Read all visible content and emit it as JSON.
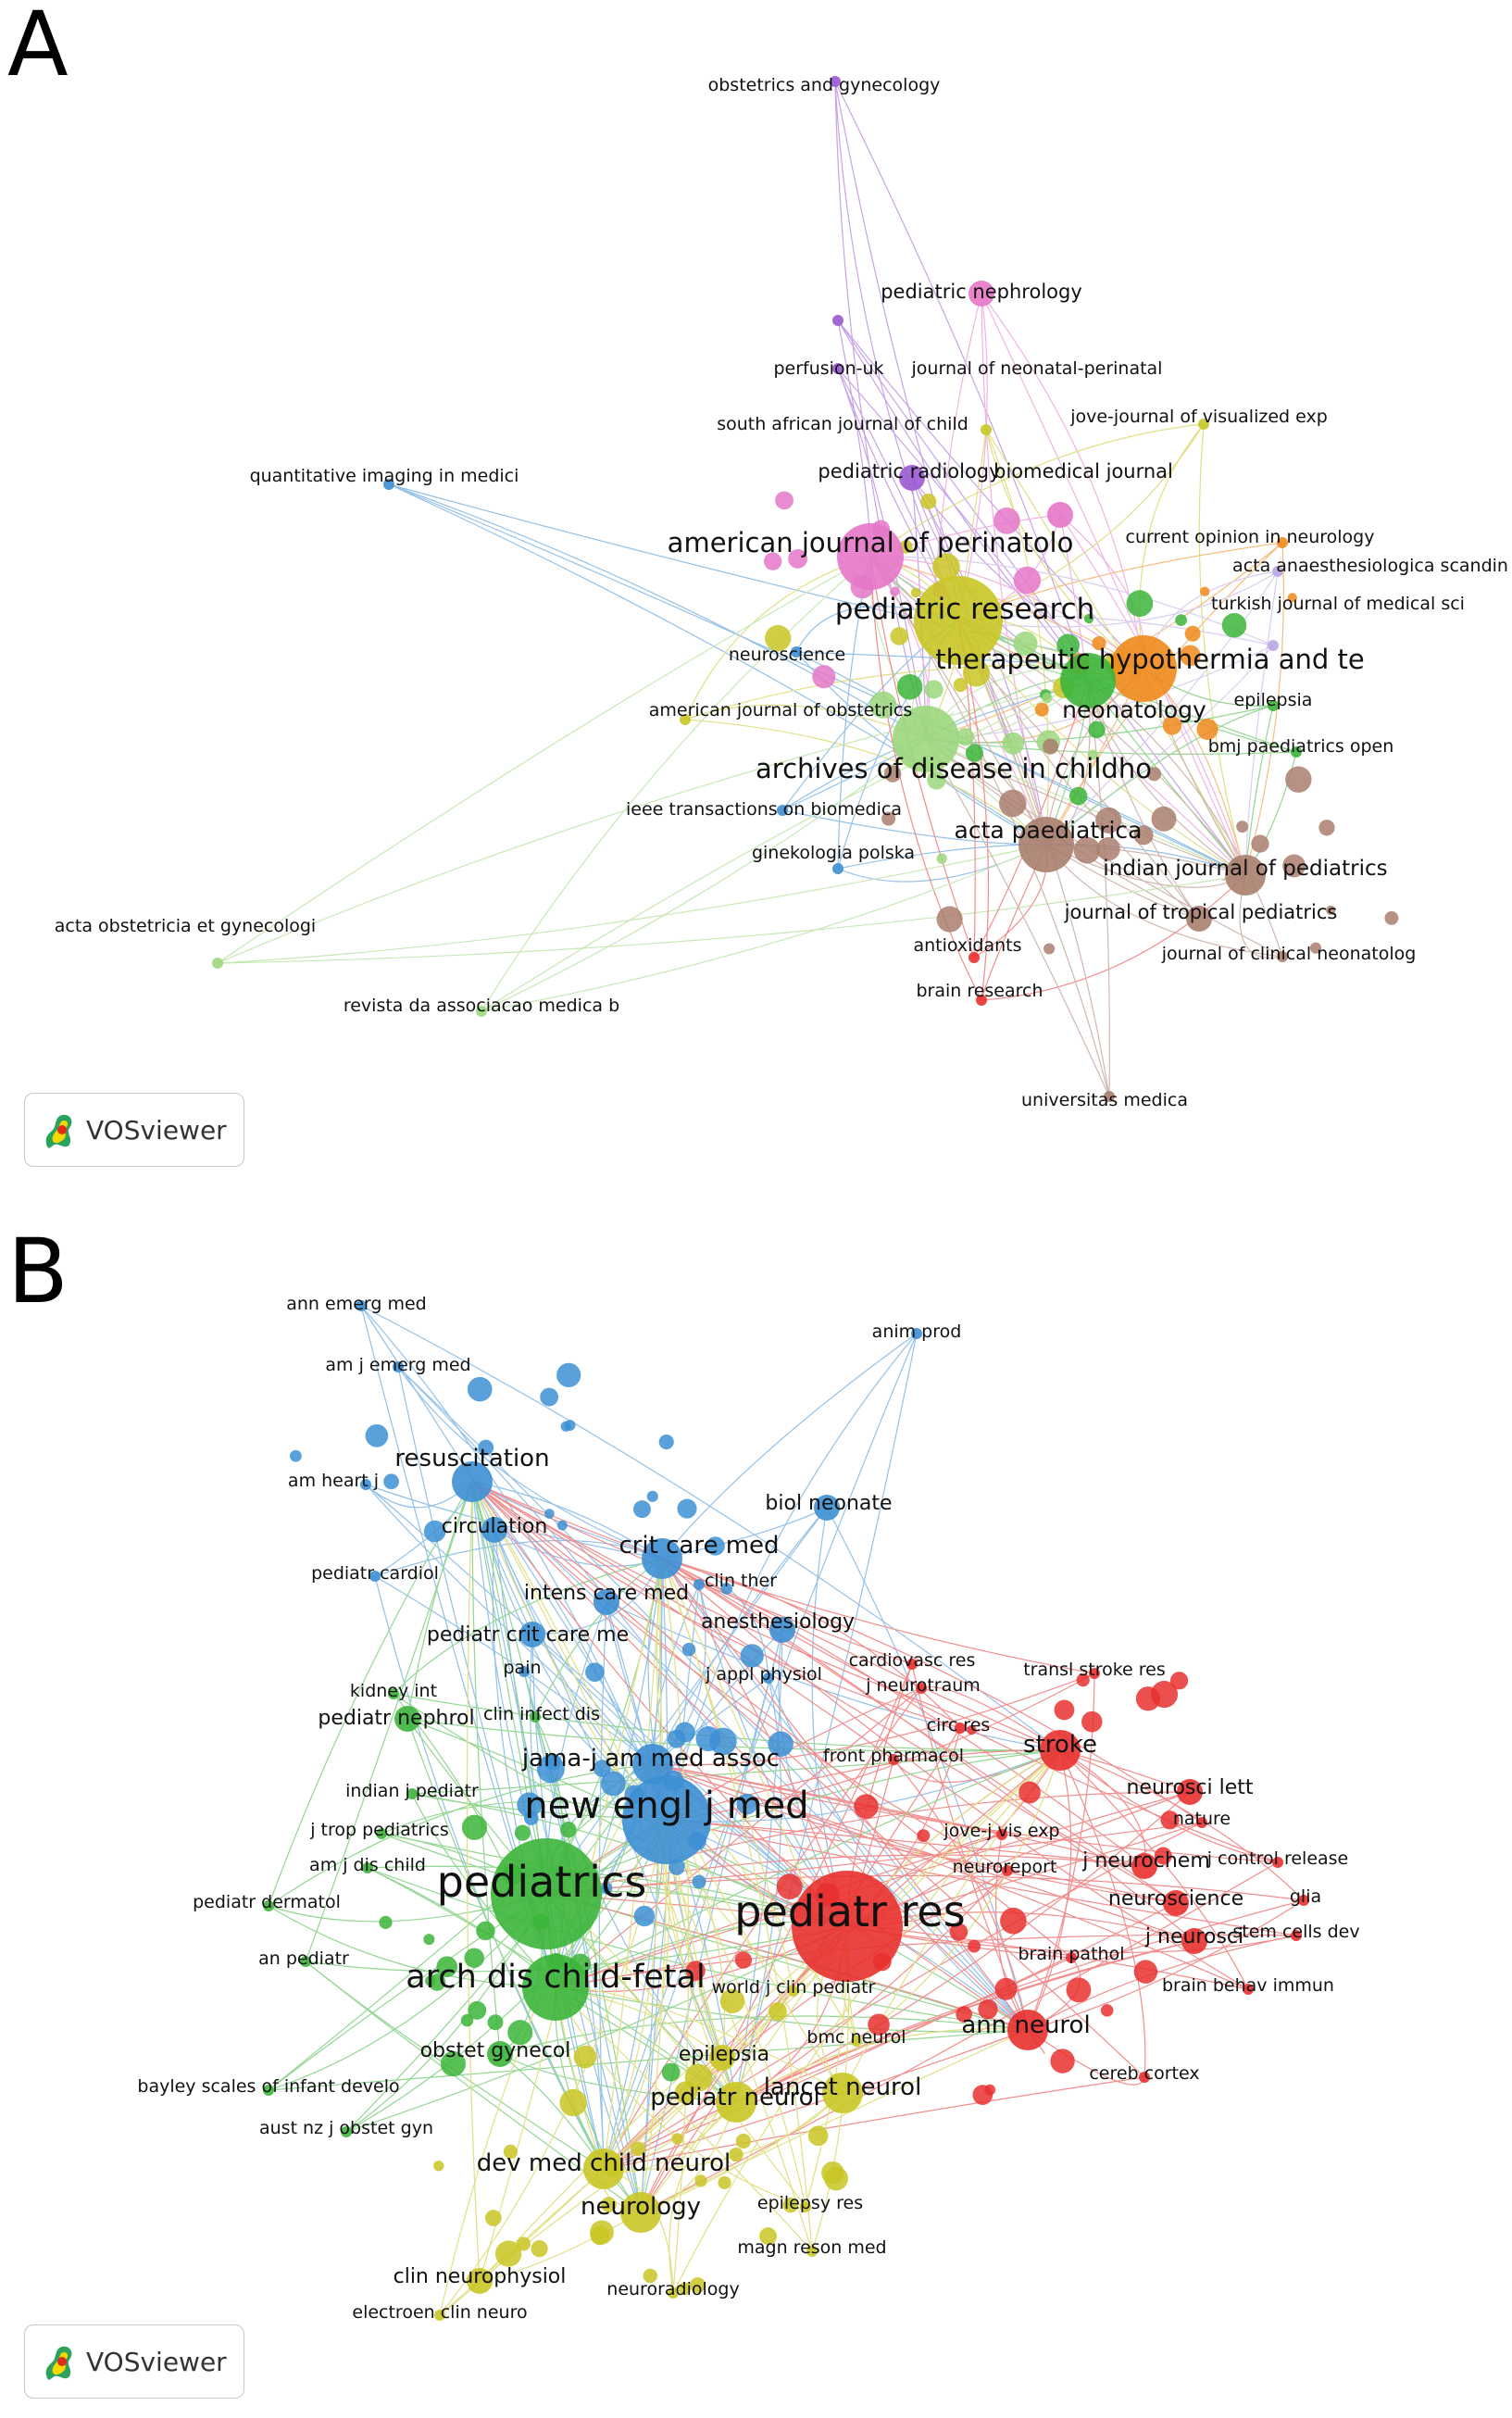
{
  "panels": [
    {
      "letter": "A",
      "logo_text": "VOSviewer",
      "nodes": [
        {
          "label": "obstetrics and gynecology",
          "cluster": "purple",
          "weight": 1
        },
        {
          "label": "pediatric nephrology",
          "cluster": "pink",
          "weight": 2
        },
        {
          "label": "perfusion-uk",
          "cluster": "purple",
          "weight": 1
        },
        {
          "label": "journal of neonatal-perinatal",
          "cluster": "purple",
          "weight": 1
        },
        {
          "label": "south african journal of child",
          "cluster": "olive",
          "weight": 1
        },
        {
          "label": "jove-journal of visualized exp",
          "cluster": "olive",
          "weight": 1
        },
        {
          "label": "quantitative imaging in medici",
          "cluster": "blue",
          "weight": 1
        },
        {
          "label": "pediatric radiology",
          "cluster": "purple",
          "weight": 2
        },
        {
          "label": "biomedical journal",
          "cluster": "pink",
          "weight": 2
        },
        {
          "label": "american journal of perinatolo",
          "cluster": "pink",
          "weight": 5
        },
        {
          "label": "current opinion in neurology",
          "cluster": "orange",
          "weight": 1
        },
        {
          "label": "acta anaesthesiologica scandin",
          "cluster": "lavender",
          "weight": 1
        },
        {
          "label": "pediatric research",
          "cluster": "olive",
          "weight": 6
        },
        {
          "label": "turkish journal of medical sci",
          "cluster": "lavender",
          "weight": 1
        },
        {
          "label": "neuroscience",
          "cluster": "blue",
          "weight": 1
        },
        {
          "label": "therapeutic hypothermia and te",
          "cluster": "orange",
          "weight": 5
        },
        {
          "label": "american journal of obstetrics",
          "cluster": "olive",
          "weight": 1
        },
        {
          "label": "neonatology",
          "cluster": "green",
          "weight": 4
        },
        {
          "label": "epilepsia",
          "cluster": "green",
          "weight": 1
        },
        {
          "label": "bmj paediatrics open",
          "cluster": "green",
          "weight": 1
        },
        {
          "label": "archives of disease in childho",
          "cluster": "lightgreen",
          "weight": 5
        },
        {
          "label": "ieee transactions on biomedica",
          "cluster": "blue",
          "weight": 1
        },
        {
          "label": "ginekologia polska",
          "cluster": "blue",
          "weight": 1
        },
        {
          "label": "acta paediatrica",
          "cluster": "brown",
          "weight": 4
        },
        {
          "label": "indian journal of pediatrics",
          "cluster": "brown",
          "weight": 3
        },
        {
          "label": "journal of tropical pediatrics",
          "cluster": "brown",
          "weight": 2
        },
        {
          "label": "acta obstetricia et gynecologi",
          "cluster": "lightgreen",
          "weight": 1
        },
        {
          "label": "antioxidants",
          "cluster": "red",
          "weight": 1
        },
        {
          "label": "journal of clinical neonatolog",
          "cluster": "brown",
          "weight": 1
        },
        {
          "label": "brain research",
          "cluster": "red",
          "weight": 1
        },
        {
          "label": "revista da associacao medica b",
          "cluster": "lightgreen",
          "weight": 1
        },
        {
          "label": "universitas medica",
          "cluster": "brown",
          "weight": 1
        }
      ]
    },
    {
      "letter": "B",
      "logo_text": "VOSviewer",
      "nodes": [
        {
          "label": "ann emerg med",
          "cluster": "blue",
          "weight": 1
        },
        {
          "label": "anim prod",
          "cluster": "blue",
          "weight": 1
        },
        {
          "label": "am j emerg med",
          "cluster": "blue",
          "weight": 1
        },
        {
          "label": "resuscitation",
          "cluster": "blue",
          "weight": 3
        },
        {
          "label": "am heart j",
          "cluster": "blue",
          "weight": 1
        },
        {
          "label": "biol neonate",
          "cluster": "blue",
          "weight": 2
        },
        {
          "label": "circulation",
          "cluster": "blue",
          "weight": 2
        },
        {
          "label": "crit care med",
          "cluster": "blue",
          "weight": 3
        },
        {
          "label": "pediatr cardiol",
          "cluster": "blue",
          "weight": 1
        },
        {
          "label": "clin ther",
          "cluster": "blue",
          "weight": 1
        },
        {
          "label": "intens care med",
          "cluster": "blue",
          "weight": 2
        },
        {
          "label": "anesthesiology",
          "cluster": "blue",
          "weight": 2
        },
        {
          "label": "pediatr crit care me",
          "cluster": "blue",
          "weight": 2
        },
        {
          "label": "cardiovasc res",
          "cluster": "red",
          "weight": 1
        },
        {
          "label": "transl stroke res",
          "cluster": "red",
          "weight": 1
        },
        {
          "label": "pain",
          "cluster": "blue",
          "weight": 1
        },
        {
          "label": "j appl physiol",
          "cluster": "blue",
          "weight": 1
        },
        {
          "label": "kidney int",
          "cluster": "green",
          "weight": 1
        },
        {
          "label": "j neurotraum",
          "cluster": "red",
          "weight": 1
        },
        {
          "label": "clin infect dis",
          "cluster": "green",
          "weight": 1
        },
        {
          "label": "pediatr nephrol",
          "cluster": "green",
          "weight": 2
        },
        {
          "label": "circ res",
          "cluster": "red",
          "weight": 1
        },
        {
          "label": "stroke",
          "cluster": "red",
          "weight": 3
        },
        {
          "label": "jama-j am med assoc",
          "cluster": "blue",
          "weight": 3
        },
        {
          "label": "front pharmacol",
          "cluster": "red",
          "weight": 1
        },
        {
          "label": "indian j pediatr",
          "cluster": "green",
          "weight": 1
        },
        {
          "label": "neurosci lett",
          "cluster": "red",
          "weight": 2
        },
        {
          "label": "new engl j med",
          "cluster": "blue",
          "weight": 6
        },
        {
          "label": "nature",
          "cluster": "red",
          "weight": 1
        },
        {
          "label": "j trop pediatrics",
          "cluster": "green",
          "weight": 1
        },
        {
          "label": "jove-j vis exp",
          "cluster": "red",
          "weight": 1
        },
        {
          "label": "am j dis child",
          "cluster": "green",
          "weight": 1
        },
        {
          "label": "j neurochem",
          "cluster": "red",
          "weight": 2
        },
        {
          "label": "j control release",
          "cluster": "red",
          "weight": 1
        },
        {
          "label": "neuroreport",
          "cluster": "red",
          "weight": 1
        },
        {
          "label": "pediatrics",
          "cluster": "green",
          "weight": 7
        },
        {
          "label": "glia",
          "cluster": "red",
          "weight": 1
        },
        {
          "label": "pediatr dermatol",
          "cluster": "green",
          "weight": 1
        },
        {
          "label": "neuroscience",
          "cluster": "red",
          "weight": 2
        },
        {
          "label": "pediatr res",
          "cluster": "red",
          "weight": 7
        },
        {
          "label": "stem cells dev",
          "cluster": "red",
          "weight": 1
        },
        {
          "label": "j neurosci",
          "cluster": "red",
          "weight": 2
        },
        {
          "label": "an pediatr",
          "cluster": "green",
          "weight": 1
        },
        {
          "label": "brain pathol",
          "cluster": "red",
          "weight": 1
        },
        {
          "label": "arch dis child-fetal",
          "cluster": "green",
          "weight": 5
        },
        {
          "label": "world j clin pediatr",
          "cluster": "olive",
          "weight": 1
        },
        {
          "label": "brain behav immun",
          "cluster": "red",
          "weight": 1
        },
        {
          "label": "ann neurol",
          "cluster": "red",
          "weight": 3
        },
        {
          "label": "obstet gynecol",
          "cluster": "green",
          "weight": 2
        },
        {
          "label": "epilepsia",
          "cluster": "olive",
          "weight": 2
        },
        {
          "label": "bmc neurol",
          "cluster": "olive",
          "weight": 1
        },
        {
          "label": "cereb cortex",
          "cluster": "red",
          "weight": 1
        },
        {
          "label": "bayley scales of infant develo",
          "cluster": "green",
          "weight": 1
        },
        {
          "label": "pediatr neurol",
          "cluster": "olive",
          "weight": 3
        },
        {
          "label": "lancet neurol",
          "cluster": "olive",
          "weight": 3
        },
        {
          "label": "aust nz j obstet gyn",
          "cluster": "green",
          "weight": 1
        },
        {
          "label": "dev med child neurol",
          "cluster": "olive",
          "weight": 3
        },
        {
          "label": "epilepsy res",
          "cluster": "olive",
          "weight": 1
        },
        {
          "label": "neurology",
          "cluster": "olive",
          "weight": 3
        },
        {
          "label": "magn reson med",
          "cluster": "olive",
          "weight": 1
        },
        {
          "label": "clin neurophysiol",
          "cluster": "olive",
          "weight": 2
        },
        {
          "label": "neuroradiology",
          "cluster": "olive",
          "weight": 1
        },
        {
          "label": "electroen clin neuro",
          "cluster": "olive",
          "weight": 1
        }
      ]
    }
  ],
  "cluster_colors": {
    "red": "#e8302f",
    "green": "#3cb53a",
    "blue": "#3d8fd4",
    "olive": "#c9c625",
    "purple": "#9b59d0",
    "pink": "#e577c9",
    "orange": "#f08a1c",
    "lavender": "#b9a7e4",
    "lightgreen": "#9bd77c",
    "brown": "#a97e6e",
    "cyan": "#3fc7d9"
  }
}
